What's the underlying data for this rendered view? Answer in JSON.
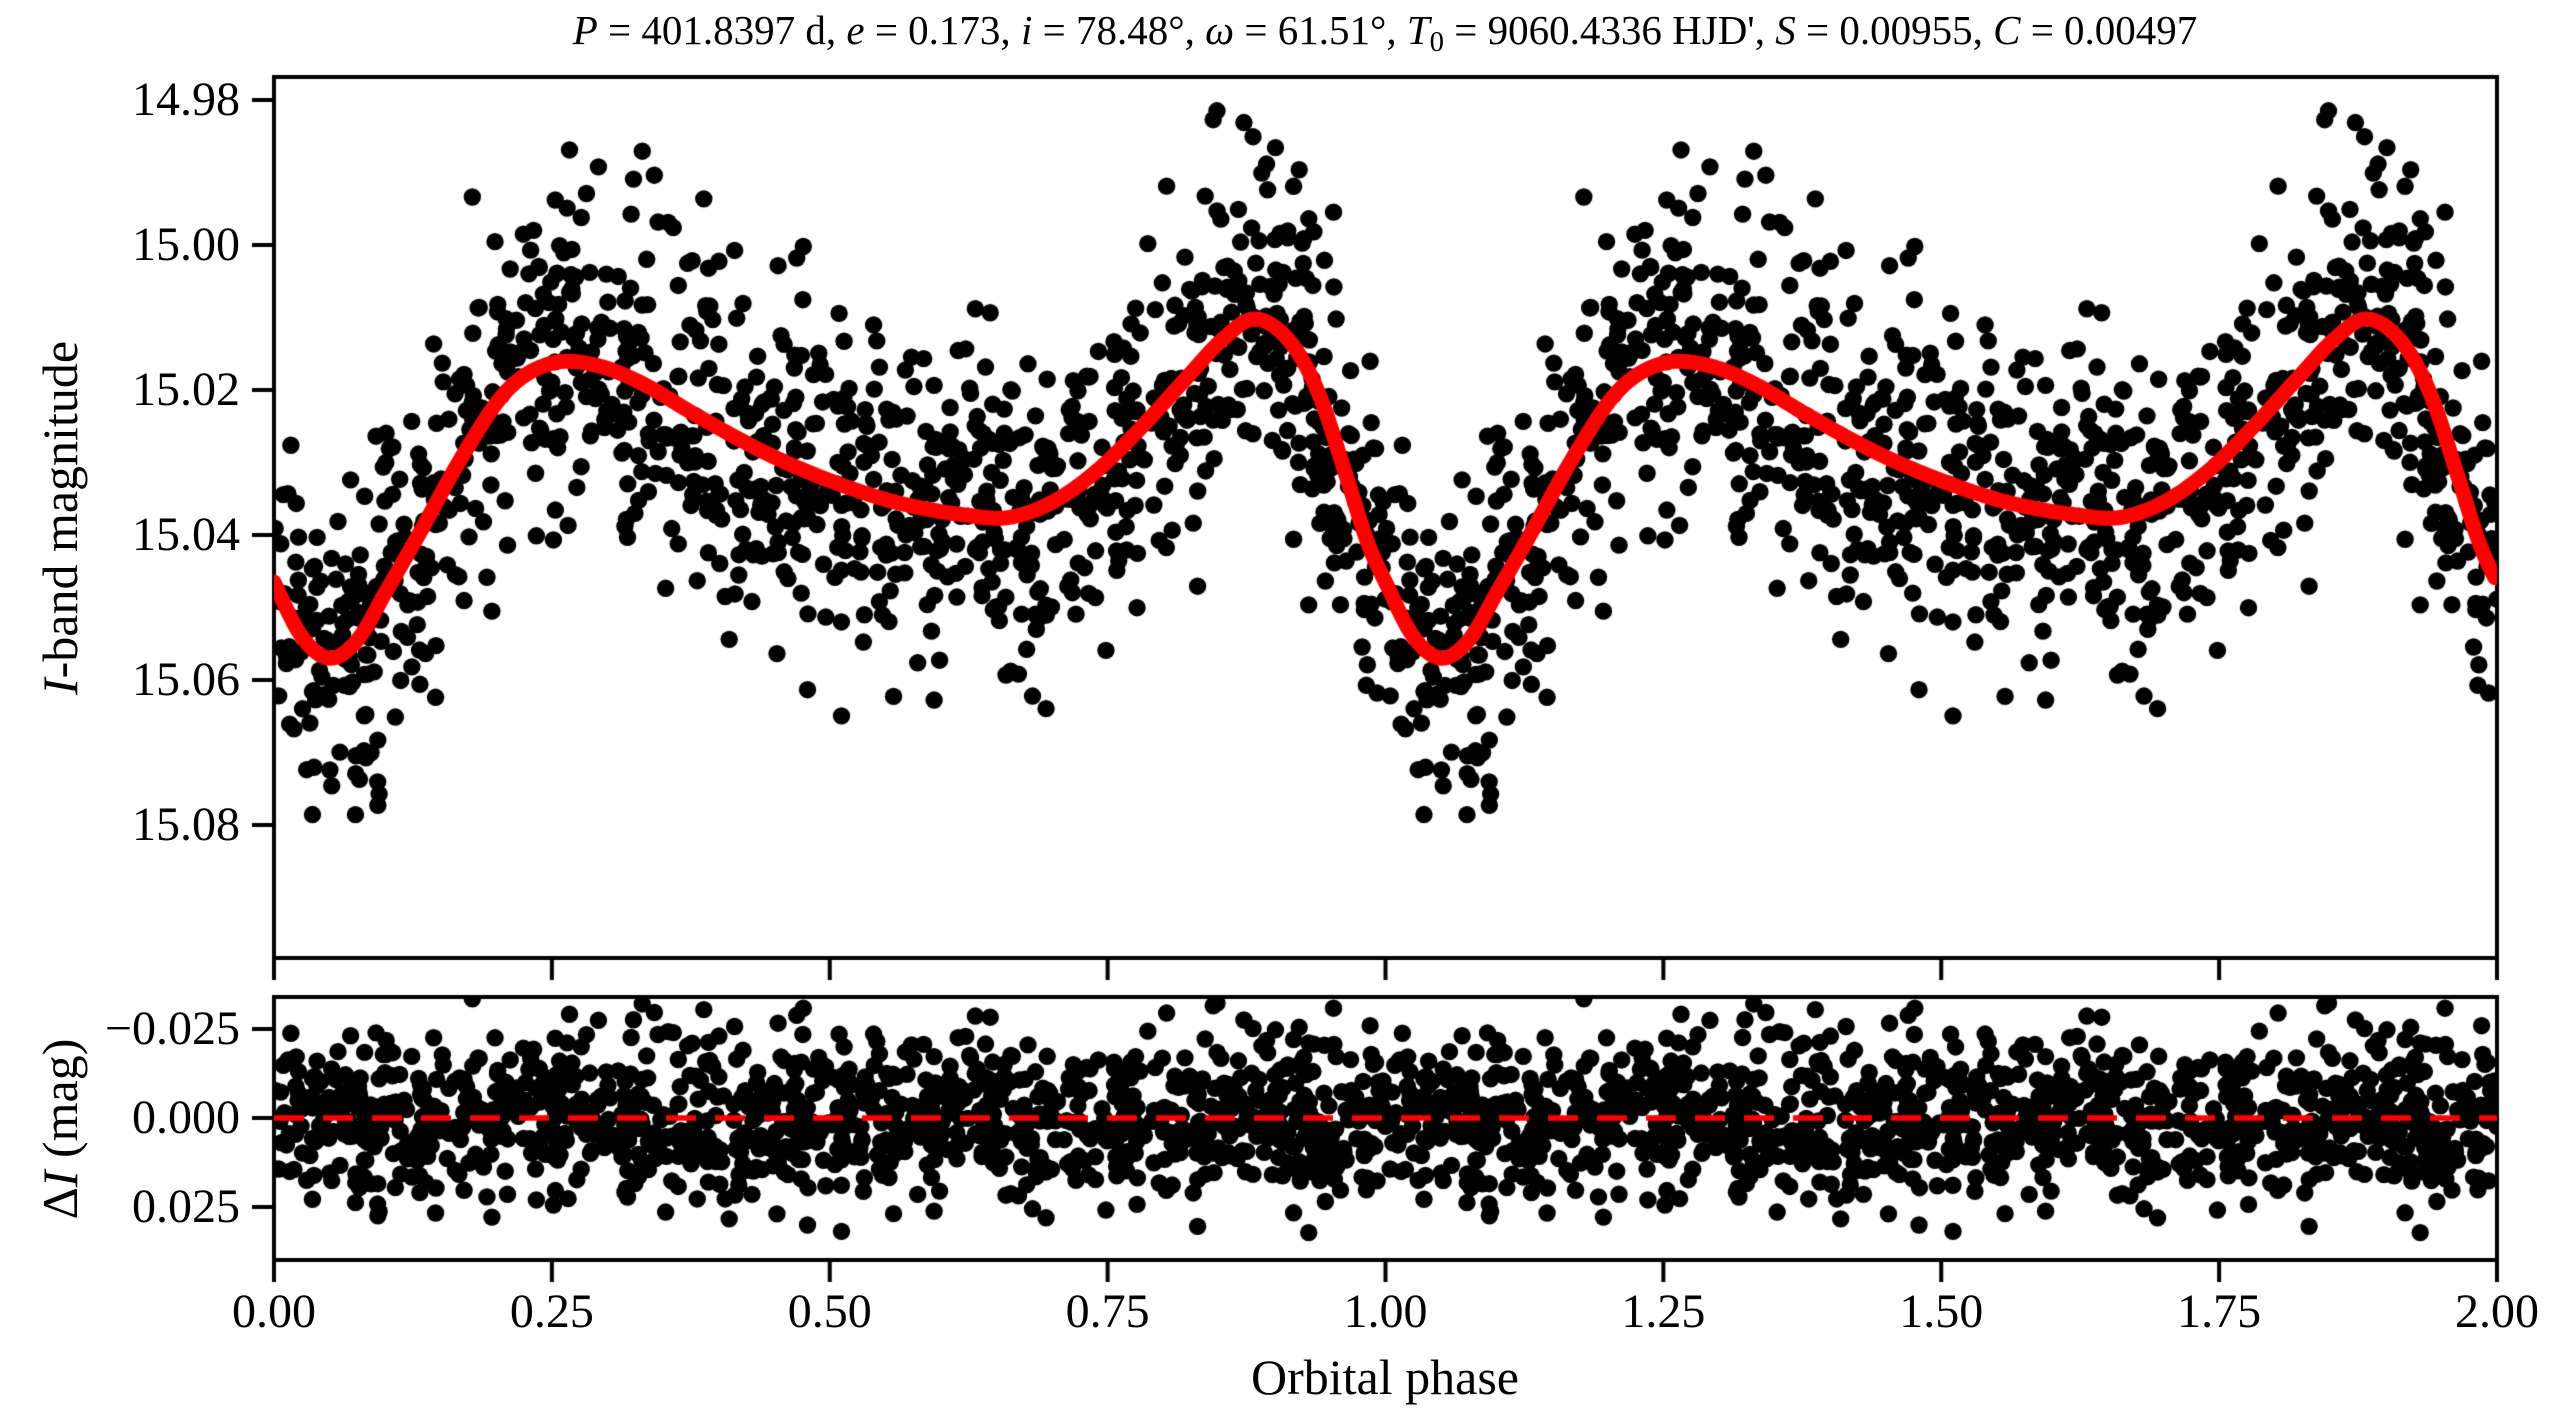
{
  "chart_data": {
    "type": "scatter",
    "title_segments": [
      {
        "text": "P",
        "style": "italic"
      },
      {
        "text": " = 401.8397 d, "
      },
      {
        "text": "e",
        "style": "italic"
      },
      {
        "text": " = 0.173, "
      },
      {
        "text": "i",
        "style": "italic"
      },
      {
        "text": " = 78.48°, "
      },
      {
        "text": "ω",
        "style": "italic"
      },
      {
        "text": " = 61.51°, "
      },
      {
        "text": "T",
        "style": "italic"
      },
      {
        "text": "0",
        "style": "sub"
      },
      {
        "text": " = 9060.4336 HJD', "
      },
      {
        "text": "S",
        "style": "italic"
      },
      {
        "text": " = 0.00955, "
      },
      {
        "text": "C",
        "style": "italic"
      },
      {
        "text": " = 0.00497"
      }
    ],
    "x_axis": {
      "label": "Orbital phase",
      "lim": [
        0.0,
        2.0
      ],
      "ticks": [
        {
          "value": 0.0,
          "label": "0.00"
        },
        {
          "value": 0.25,
          "label": "0.25"
        },
        {
          "value": 0.5,
          "label": "0.50"
        },
        {
          "value": 0.75,
          "label": "0.75"
        },
        {
          "value": 1.0,
          "label": "1.00"
        },
        {
          "value": 1.25,
          "label": "1.25"
        },
        {
          "value": 1.5,
          "label": "1.50"
        },
        {
          "value": 1.75,
          "label": "1.75"
        },
        {
          "value": 2.0,
          "label": "2.00"
        }
      ]
    },
    "top_panel": {
      "ylabel_segments": [
        {
          "text": "I",
          "style": "italic"
        },
        {
          "text": "-band magnitude"
        }
      ],
      "ylim": [
        14.9768,
        15.0983
      ],
      "y_inverted": true,
      "yticks": [
        {
          "value": 14.98,
          "label": "14.98"
        },
        {
          "value": 15.0,
          "label": "15.00"
        },
        {
          "value": 15.02,
          "label": "15.02"
        },
        {
          "value": 15.04,
          "label": "15.04"
        },
        {
          "value": 15.06,
          "label": "15.06"
        },
        {
          "value": 15.08,
          "label": "15.08"
        }
      ],
      "model_curve": {
        "color": "#ff0000",
        "period_points": [
          [
            0.0,
            15.0465
          ],
          [
            0.025,
            15.054
          ],
          [
            0.05,
            15.057
          ],
          [
            0.075,
            15.0545
          ],
          [
            0.1,
            15.048
          ],
          [
            0.13,
            15.04
          ],
          [
            0.17,
            15.029
          ],
          [
            0.21,
            15.02
          ],
          [
            0.25,
            15.0163
          ],
          [
            0.29,
            15.0166
          ],
          [
            0.33,
            15.019
          ],
          [
            0.38,
            15.0235
          ],
          [
            0.44,
            15.0285
          ],
          [
            0.5,
            15.0325
          ],
          [
            0.56,
            15.0355
          ],
          [
            0.62,
            15.0372
          ],
          [
            0.66,
            15.0376
          ],
          [
            0.7,
            15.0355
          ],
          [
            0.74,
            15.0312
          ],
          [
            0.78,
            15.0252
          ],
          [
            0.82,
            15.0185
          ],
          [
            0.855,
            15.0128
          ],
          [
            0.882,
            15.0102
          ],
          [
            0.915,
            15.0135
          ],
          [
            0.94,
            15.0205
          ],
          [
            0.965,
            15.032
          ],
          [
            0.985,
            15.0415
          ]
        ]
      },
      "scatter": {
        "color": "#000000",
        "n_unique_phases": 1150,
        "cycles": 2,
        "noise_sigma_mag": 0.0112,
        "outlier_fraction": 0.07,
        "outlier_sigma_scale": 1.6,
        "noise_clamp_mag": 0.0335,
        "seed": 1234
      }
    },
    "bottom_panel": {
      "ylabel_segments": [
        {
          "text": "Δ"
        },
        {
          "text": "I",
          "style": "italic"
        },
        {
          "text": " (mag)"
        }
      ],
      "ylim": [
        -0.034,
        0.0399
      ],
      "y_inverted": true,
      "yticks": [
        {
          "value": -0.025,
          "label": "−0.025"
        },
        {
          "value": 0.0,
          "label": "0.000"
        },
        {
          "value": 0.025,
          "label": "0.025"
        }
      ],
      "zero_line": {
        "value": 0.0,
        "color": "#ff0000",
        "style": "dashed",
        "dash": [
          30,
          19
        ]
      }
    },
    "colors": {
      "scatter": "#000000",
      "model": "#ff0000",
      "axes": "#000000",
      "background": "#ffffff"
    }
  }
}
